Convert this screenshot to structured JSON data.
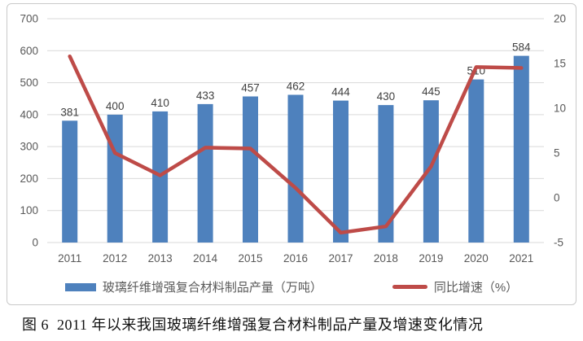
{
  "figure": {
    "caption": "图 6  2011 年以来我国玻璃纤维增强复合材料制品产量及增速变化情况"
  },
  "legend": {
    "production_label": "玻璃纤维增强复合材料制品产量（万吨）",
    "growth_label": "同比增速（%）"
  },
  "colors": {
    "bar": "#4e81bd",
    "line": "#be4b48",
    "grid": "#d9d9d9",
    "axis_text": "#595959",
    "value_label": "#404040"
  },
  "chart_data": {
    "type": "combo-bar-line",
    "categories": [
      "2011",
      "2012",
      "2013",
      "2014",
      "2015",
      "2016",
      "2017",
      "2018",
      "2019",
      "2020",
      "2021"
    ],
    "series": [
      {
        "name": "玻璃纤维增强复合材料制品产量（万吨）",
        "type": "bar",
        "axis": "left",
        "color": "#4e81bd",
        "values": [
          381,
          400,
          410,
          433,
          457,
          462,
          444,
          430,
          445,
          510,
          584
        ],
        "data_labels": [
          381,
          400,
          410,
          433,
          457,
          462,
          444,
          430,
          445,
          510,
          584
        ]
      },
      {
        "name": "同比增速（%）",
        "type": "line",
        "axis": "right",
        "color": "#be4b48",
        "values": [
          15.8,
          5.0,
          2.5,
          5.6,
          5.5,
          1.1,
          -3.9,
          -3.2,
          3.5,
          14.6,
          14.5
        ],
        "data_labels": false
      }
    ],
    "left_axis": {
      "min": 0,
      "max": 700,
      "step": 100,
      "tick_labels": [
        "0",
        "100",
        "200",
        "300",
        "400",
        "500",
        "600",
        "700"
      ]
    },
    "right_axis": {
      "min": -5,
      "max": 20,
      "step": 5,
      "tick_labels": [
        "-5",
        "0",
        "5",
        "10",
        "15",
        "20"
      ]
    },
    "grid": "horizontal-major-left-axis-only",
    "legend_position": "bottom"
  }
}
